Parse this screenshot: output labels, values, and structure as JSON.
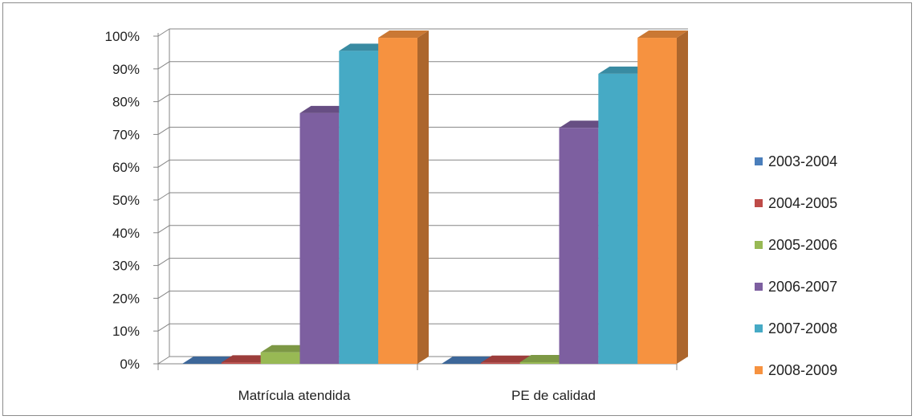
{
  "chart_data": {
    "type": "bar",
    "categories": [
      "Matrícula atendida",
      "PE de calidad"
    ],
    "series": [
      {
        "name": "2003-2004",
        "values": [
          0,
          0
        ],
        "color": "#4a7ebb"
      },
      {
        "name": "2004-2005",
        "values": [
          0.4,
          0.3
        ],
        "color": "#be4b48"
      },
      {
        "name": "2005-2006",
        "values": [
          3.5,
          0.5
        ],
        "color": "#98b954"
      },
      {
        "name": "2006-2007",
        "values": [
          76.5,
          72
        ],
        "color": "#7d5fa0"
      },
      {
        "name": "2007-2008",
        "values": [
          95.5,
          88.5
        ],
        "color": "#46aac5"
      },
      {
        "name": "2008-2009",
        "values": [
          99.5,
          99.5
        ],
        "color": "#f69240"
      }
    ],
    "ylim": [
      0,
      100
    ],
    "yticks": [
      "0%",
      "10%",
      "20%",
      "30%",
      "40%",
      "50%",
      "60%",
      "70%",
      "80%",
      "90%",
      "100%"
    ],
    "grid": true,
    "legend": "right",
    "title": "",
    "xlabel": "",
    "ylabel": ""
  }
}
